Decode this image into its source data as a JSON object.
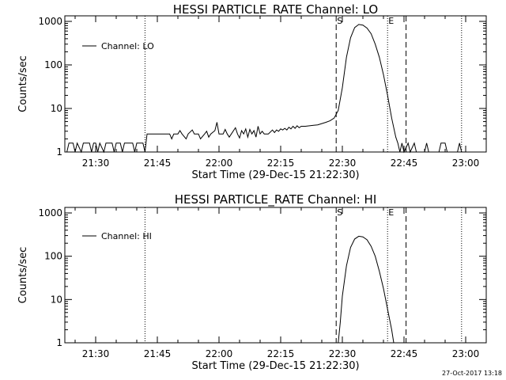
{
  "chart_data": [
    {
      "type": "line",
      "title": "HESSI PARTICLE_RATE Channel: LO",
      "xlabel": "Start Time (29-Dec-15 21:22:30)",
      "ylabel": "Counts/sec",
      "yscale": "log",
      "xlim": [
        "21:22:30",
        "23:05:00"
      ],
      "ylim": [
        1,
        1000
      ],
      "x_tick_labels": [
        "21:30",
        "21:45",
        "22:00",
        "22:15",
        "22:30",
        "22:45",
        "23:00"
      ],
      "y_tick_labels": [
        "1",
        "10",
        "100",
        "1000"
      ],
      "legend": {
        "entries": [
          "Channel: LO"
        ],
        "placement": "top-left"
      },
      "markers": [
        {
          "label": "S",
          "time": "22:28:30",
          "style": "dashed"
        },
        {
          "label": "E",
          "time": "22:41:00",
          "style": "dotted"
        }
      ],
      "extra_dashed_lines": [
        "22:45:30"
      ],
      "extra_dotted_lines": [
        "21:42:00",
        "22:59:00"
      ],
      "series": [
        {
          "name": "Channel: LO",
          "points": [
            [
              "21:23:00",
              1
            ],
            [
              "21:23:30",
              1.6
            ],
            [
              "21:24:30",
              1.6
            ],
            [
              "21:25:00",
              1
            ],
            [
              "21:25:30",
              1.6
            ],
            [
              "21:26:30",
              1
            ],
            [
              "21:27:00",
              1.6
            ],
            [
              "21:28:30",
              1.6
            ],
            [
              "21:29:00",
              1
            ],
            [
              "21:29:30",
              1.6
            ],
            [
              "21:30:00",
              1.6
            ],
            [
              "21:30:30",
              1
            ],
            [
              "21:31:00",
              1.6
            ],
            [
              "21:32:00",
              1
            ],
            [
              "21:32:30",
              1.6
            ],
            [
              "21:34:00",
              1.6
            ],
            [
              "21:34:30",
              1
            ],
            [
              "21:35:00",
              1.6
            ],
            [
              "21:36:00",
              1.6
            ],
            [
              "21:36:30",
              1
            ],
            [
              "21:37:00",
              1.6
            ],
            [
              "21:39:00",
              1.6
            ],
            [
              "21:39:30",
              1
            ],
            [
              "21:40:00",
              1.6
            ],
            [
              "21:41:30",
              1.6
            ],
            [
              "21:42:00",
              1
            ],
            [
              "21:42:30",
              2.6
            ],
            [
              "21:44:00",
              2.6
            ],
            [
              "21:45:00",
              2.6
            ],
            [
              "21:46:00",
              2.6
            ],
            [
              "21:47:00",
              2.6
            ],
            [
              "21:48:00",
              2.6
            ],
            [
              "21:48:30",
              2.0
            ],
            [
              "21:49:00",
              2.6
            ],
            [
              "21:50:00",
              2.6
            ],
            [
              "21:50:30",
              3.1
            ],
            [
              "21:51:00",
              2.6
            ],
            [
              "21:52:00",
              2.0
            ],
            [
              "21:52:30",
              2.6
            ],
            [
              "21:53:30",
              3.2
            ],
            [
              "21:54:00",
              2.6
            ],
            [
              "21:55:00",
              2.6
            ],
            [
              "21:55:30",
              2.0
            ],
            [
              "21:56:30",
              2.6
            ],
            [
              "21:57:00",
              3.0
            ],
            [
              "21:57:30",
              2.2
            ],
            [
              "21:58:00",
              2.6
            ],
            [
              "21:59:00",
              3.1
            ],
            [
              "21:59:30",
              4.8
            ],
            [
              "22:00:00",
              2.6
            ],
            [
              "22:01:00",
              2.6
            ],
            [
              "22:01:30",
              3.3
            ],
            [
              "22:02:00",
              2.6
            ],
            [
              "22:02:30",
              2.2
            ],
            [
              "22:03:00",
              2.6
            ],
            [
              "22:04:00",
              3.6
            ],
            [
              "22:04:30",
              2.6
            ],
            [
              "22:05:00",
              2.1
            ],
            [
              "22:05:30",
              3.1
            ],
            [
              "22:06:00",
              2.6
            ],
            [
              "22:06:30",
              3.4
            ],
            [
              "22:07:00",
              2.2
            ],
            [
              "22:07:30",
              3.3
            ],
            [
              "22:08:00",
              2.6
            ],
            [
              "22:08:30",
              3.1
            ],
            [
              "22:09:00",
              2.2
            ],
            [
              "22:09:30",
              3.9
            ],
            [
              "22:10:00",
              2.6
            ],
            [
              "22:10:30",
              3.0
            ],
            [
              "22:11:00",
              2.6
            ],
            [
              "22:12:00",
              2.6
            ],
            [
              "22:13:00",
              3.2
            ],
            [
              "22:13:30",
              2.8
            ],
            [
              "22:14:00",
              3.2
            ],
            [
              "22:14:30",
              3.0
            ],
            [
              "22:15:00",
              3.4
            ],
            [
              "22:15:30",
              3.2
            ],
            [
              "22:16:00",
              3.5
            ],
            [
              "22:16:30",
              3.2
            ],
            [
              "22:17:00",
              3.7
            ],
            [
              "22:17:30",
              3.4
            ],
            [
              "22:18:00",
              3.9
            ],
            [
              "22:18:30",
              3.5
            ],
            [
              "22:19:00",
              4.0
            ],
            [
              "22:19:30",
              3.6
            ],
            [
              "22:20:00",
              3.9
            ],
            [
              "22:21:00",
              3.9
            ],
            [
              "22:22:00",
              4.0
            ],
            [
              "22:23:00",
              4.1
            ],
            [
              "22:24:00",
              4.2
            ],
            [
              "22:25:00",
              4.5
            ],
            [
              "22:26:00",
              4.8
            ],
            [
              "22:27:00",
              5.2
            ],
            [
              "22:28:00",
              6.0
            ],
            [
              "22:29:00",
              9.0
            ],
            [
              "22:30:00",
              30
            ],
            [
              "22:31:00",
              150
            ],
            [
              "22:32:00",
              420
            ],
            [
              "22:33:00",
              720
            ],
            [
              "22:34:00",
              850
            ],
            [
              "22:35:00",
              820
            ],
            [
              "22:36:00",
              700
            ],
            [
              "22:37:00",
              520
            ],
            [
              "22:38:00",
              300
            ],
            [
              "22:39:00",
              150
            ],
            [
              "22:40:00",
              60
            ],
            [
              "22:41:00",
              20
            ],
            [
              "22:42:00",
              6
            ],
            [
              "22:43:00",
              2.2
            ],
            [
              "22:43:30",
              1.6
            ],
            [
              "22:44:00",
              1
            ],
            [
              "22:44:30",
              1.6
            ],
            [
              "22:45:00",
              1
            ],
            [
              "22:46:00",
              1.6
            ],
            [
              "22:46:30",
              1
            ],
            [
              "22:47:30",
              1.6
            ],
            [
              "22:48:00",
              1
            ],
            [
              "22:50:00",
              1
            ],
            [
              "22:50:30",
              1.6
            ],
            [
              "22:51:00",
              1
            ],
            [
              "22:53:30",
              1
            ],
            [
              "22:54:00",
              1.6
            ],
            [
              "22:55:00",
              1.6
            ],
            [
              "22:55:30",
              1
            ],
            [
              "22:58:00",
              1
            ],
            [
              "22:58:30",
              1.6
            ],
            [
              "22:59:00",
              1
            ]
          ]
        }
      ]
    },
    {
      "type": "line",
      "title": "HESSI PARTICLE_RATE Channel: HI",
      "xlabel": "Start Time (29-Dec-15 21:22:30)",
      "ylabel": "Counts/sec",
      "yscale": "log",
      "xlim": [
        "21:22:30",
        "23:05:00"
      ],
      "ylim": [
        1,
        1000
      ],
      "x_tick_labels": [
        "21:30",
        "21:45",
        "22:00",
        "22:15",
        "22:30",
        "22:45",
        "23:00"
      ],
      "y_tick_labels": [
        "1",
        "10",
        "100",
        "1000"
      ],
      "legend": {
        "entries": [
          "Channel: HI"
        ],
        "placement": "top-left"
      },
      "markers": [
        {
          "label": "S",
          "time": "22:28:30",
          "style": "dashed"
        },
        {
          "label": "E",
          "time": "22:41:00",
          "style": "dotted"
        }
      ],
      "extra_dashed_lines": [
        "22:45:30"
      ],
      "extra_dotted_lines": [
        "21:42:00",
        "22:59:00"
      ],
      "series": [
        {
          "name": "Channel: HI",
          "points": [
            [
              "22:29:00",
              1
            ],
            [
              "22:29:30",
              3
            ],
            [
              "22:30:00",
              12
            ],
            [
              "22:31:00",
              60
            ],
            [
              "22:32:00",
              160
            ],
            [
              "22:33:00",
              250
            ],
            [
              "22:34:00",
              290
            ],
            [
              "22:35:00",
              280
            ],
            [
              "22:36:00",
              240
            ],
            [
              "22:37:00",
              170
            ],
            [
              "22:38:00",
              100
            ],
            [
              "22:39:00",
              45
            ],
            [
              "22:40:00",
              18
            ],
            [
              "22:41:00",
              6
            ],
            [
              "22:42:00",
              2
            ],
            [
              "22:42:30",
              1
            ]
          ]
        }
      ]
    }
  ],
  "timestamp": "27-Oct-2017 13:18"
}
